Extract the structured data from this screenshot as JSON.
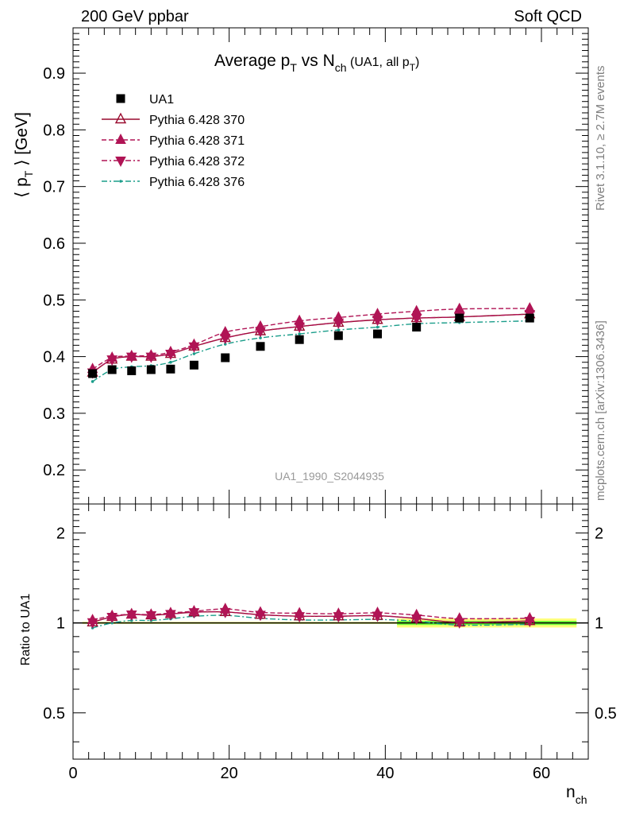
{
  "header": {
    "left": "200 GeV ppbar",
    "right": "Soft QCD"
  },
  "side_notes": {
    "rivet": "Rivet 3.1.10, ≥ 2.7M events",
    "mcplots": "mcplots.cern.ch [arXiv:1306.3436]"
  },
  "analysis_label": "UA1_1990_S2044935",
  "chart_data": [
    {
      "type": "scatter",
      "title_main": "Average p",
      "title_sub_T": "T",
      "title_vs": " vs N",
      "title_sub_ch": "ch",
      "title_paren_open": " (UA1, all p",
      "title_paren_sub": "T",
      "title_paren_close": ")",
      "ylabel_left": "⟨ p",
      "ylabel_sub": "T",
      "ylabel_right": " ⟩ [GeV]",
      "xlabel_main": "n",
      "xlabel_sub": "ch",
      "xlim": [
        0,
        66
      ],
      "ylim": [
        0.14,
        0.98
      ],
      "yticks": [
        "0.2",
        "0.3",
        "0.4",
        "0.5",
        "0.6",
        "0.7",
        "0.8",
        "0.9"
      ],
      "xticks": [
        "0",
        "20",
        "40",
        "60"
      ],
      "x": [
        2.5,
        5.0,
        7.5,
        10.0,
        12.5,
        15.5,
        19.5,
        24.0,
        29.0,
        34.0,
        39.0,
        44.0,
        49.5,
        58.5
      ],
      "series": [
        {
          "name": "UA1",
          "color": "#000000",
          "marker": "square",
          "values": [
            0.37,
            0.377,
            0.375,
            0.377,
            0.378,
            0.385,
            0.398,
            0.418,
            0.43,
            0.437,
            0.44,
            0.452,
            0.468,
            0.468
          ]
        },
        {
          "name": "Pythia 6.428 370",
          "color": "#990a2e",
          "marker": "triangle-up-open",
          "line": "solid",
          "values": [
            0.372,
            0.395,
            0.4,
            0.4,
            0.405,
            0.418,
            0.433,
            0.445,
            0.453,
            0.46,
            0.465,
            0.468,
            0.47,
            0.475
          ]
        },
        {
          "name": "Pythia 6.428 371",
          "color": "#b01455",
          "marker": "triangle-up",
          "line": "dashed",
          "values": [
            0.378,
            0.398,
            0.401,
            0.402,
            0.408,
            0.421,
            0.443,
            0.453,
            0.463,
            0.469,
            0.475,
            0.48,
            0.484,
            0.485
          ]
        },
        {
          "name": "Pythia 6.428 372",
          "color": "#b01455",
          "marker": "triangle-down",
          "line": "dashdot",
          "values": [
            0.372,
            0.395,
            0.4,
            0.4,
            0.405,
            0.418,
            0.433,
            0.445,
            0.453,
            0.46,
            0.465,
            0.468,
            0.47,
            0.475
          ]
        },
        {
          "name": "Pythia 6.428 376",
          "color": "#1a9d8a",
          "marker": "dot",
          "line": "dashdot",
          "values": [
            0.356,
            0.377,
            0.382,
            0.384,
            0.39,
            0.405,
            0.422,
            0.433,
            0.44,
            0.447,
            0.452,
            0.458,
            0.46,
            0.463
          ]
        }
      ]
    },
    {
      "type": "line",
      "ylabel": "Ratio to UA1",
      "ylim": [
        0.35,
        2.5
      ],
      "log_scale": true,
      "yticks": [
        "0.5",
        "1",
        "2"
      ],
      "band_colors": {
        "inner": "#00ff00",
        "outer": "#ffff66"
      },
      "x": [
        2.5,
        5.0,
        7.5,
        10.0,
        12.5,
        15.5,
        19.5,
        24.0,
        29.0,
        34.0,
        39.0,
        44.0,
        49.5,
        58.5
      ],
      "series": [
        {
          "name": "Pythia 6.428 370",
          "values": [
            1.005,
            1.048,
            1.067,
            1.061,
            1.071,
            1.086,
            1.088,
            1.065,
            1.053,
            1.053,
            1.057,
            1.035,
            1.004,
            1.015
          ]
        },
        {
          "name": "Pythia 6.428 371",
          "values": [
            1.022,
            1.056,
            1.069,
            1.066,
            1.079,
            1.094,
            1.113,
            1.084,
            1.077,
            1.073,
            1.08,
            1.062,
            1.034,
            1.036
          ]
        },
        {
          "name": "Pythia 6.428 372",
          "values": [
            1.005,
            1.048,
            1.067,
            1.061,
            1.071,
            1.086,
            1.088,
            1.065,
            1.053,
            1.053,
            1.057,
            1.035,
            1.004,
            1.015
          ]
        },
        {
          "name": "Pythia 6.428 376",
          "values": [
            0.962,
            1.0,
            1.019,
            1.019,
            1.032,
            1.052,
            1.06,
            1.036,
            1.023,
            1.023,
            1.027,
            1.013,
            0.983,
            0.989
          ]
        }
      ]
    }
  ]
}
